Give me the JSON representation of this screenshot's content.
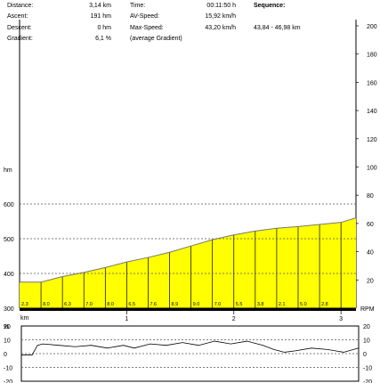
{
  "stats": {
    "distance_label": "Distance:",
    "distance_value": "3,14 km",
    "ascent_label": "Ascent:",
    "ascent_value": "191 hm",
    "descent_label": "Descent:",
    "descent_value": "0 hm",
    "gradient_label": "Gradient:",
    "gradient_value": "6,1 %",
    "time_label": "Time:",
    "time_value": "00:11:50 h",
    "avspeed_label": "AV-Speed:",
    "avspeed_value": "15,92 km/h",
    "maxspeed_label": "Max-Speed:",
    "maxspeed_value": "43,20 km/h",
    "avg_gradient_note": "(average Gradient)",
    "sequence_label": "Sequence:",
    "sequence_value": "43,84 - 46,98 km"
  },
  "colors": {
    "fill": "#ffff00",
    "line": "#000000",
    "grid": "#555555"
  },
  "chart_data": [
    {
      "type": "area",
      "ylabel": "hm",
      "xlabel": "km",
      "ylim": [
        300,
        600
      ],
      "xlim": [
        0,
        3.14
      ],
      "y_ticks": [
        300,
        400,
        500,
        600
      ],
      "x_ticks": [
        1,
        2,
        3
      ],
      "x_tick_labels": [
        "1",
        "2",
        "3"
      ],
      "right_axis": {
        "label": "RPM",
        "ylim": [
          0,
          200
        ],
        "ticks": [
          20,
          40,
          60,
          80,
          100,
          120,
          140,
          160,
          180,
          200
        ]
      },
      "segment_gradients": [
        "2.3",
        "8.0",
        "6.3",
        "7.0",
        "8.0",
        "6.5",
        "7.6",
        "8.9",
        "9.0",
        "7.0",
        "5.5",
        "3.8",
        "2.1",
        "5.0",
        "2.8"
      ],
      "x": [
        0,
        0.2,
        0.4,
        0.6,
        0.8,
        1.0,
        1.2,
        1.4,
        1.6,
        1.8,
        2.0,
        2.2,
        2.4,
        2.6,
        2.8,
        3.0,
        3.14
      ],
      "y": [
        375,
        375,
        391,
        403,
        417,
        433,
        446,
        461,
        479,
        497,
        511,
        522,
        530,
        535,
        541,
        547,
        560
      ]
    },
    {
      "type": "line",
      "ylabel": "%",
      "ylim": [
        -20,
        20
      ],
      "y_ticks": [
        -20,
        -10,
        0,
        10,
        20
      ],
      "right_ticks": [
        -20,
        -10,
        0,
        10,
        20
      ],
      "x": [
        0,
        0.1,
        0.15,
        0.2,
        0.35,
        0.5,
        0.65,
        0.8,
        0.95,
        1.05,
        1.2,
        1.35,
        1.5,
        1.65,
        1.8,
        1.95,
        2.1,
        2.25,
        2.35,
        2.45,
        2.55,
        2.7,
        2.85,
        3.0,
        3.14
      ],
      "y": [
        -1,
        -1,
        6,
        7,
        6,
        5,
        6,
        4,
        6,
        4,
        7,
        6,
        8,
        6,
        9,
        7,
        9,
        6,
        3,
        1,
        2,
        4,
        3,
        1,
        4
      ]
    }
  ]
}
